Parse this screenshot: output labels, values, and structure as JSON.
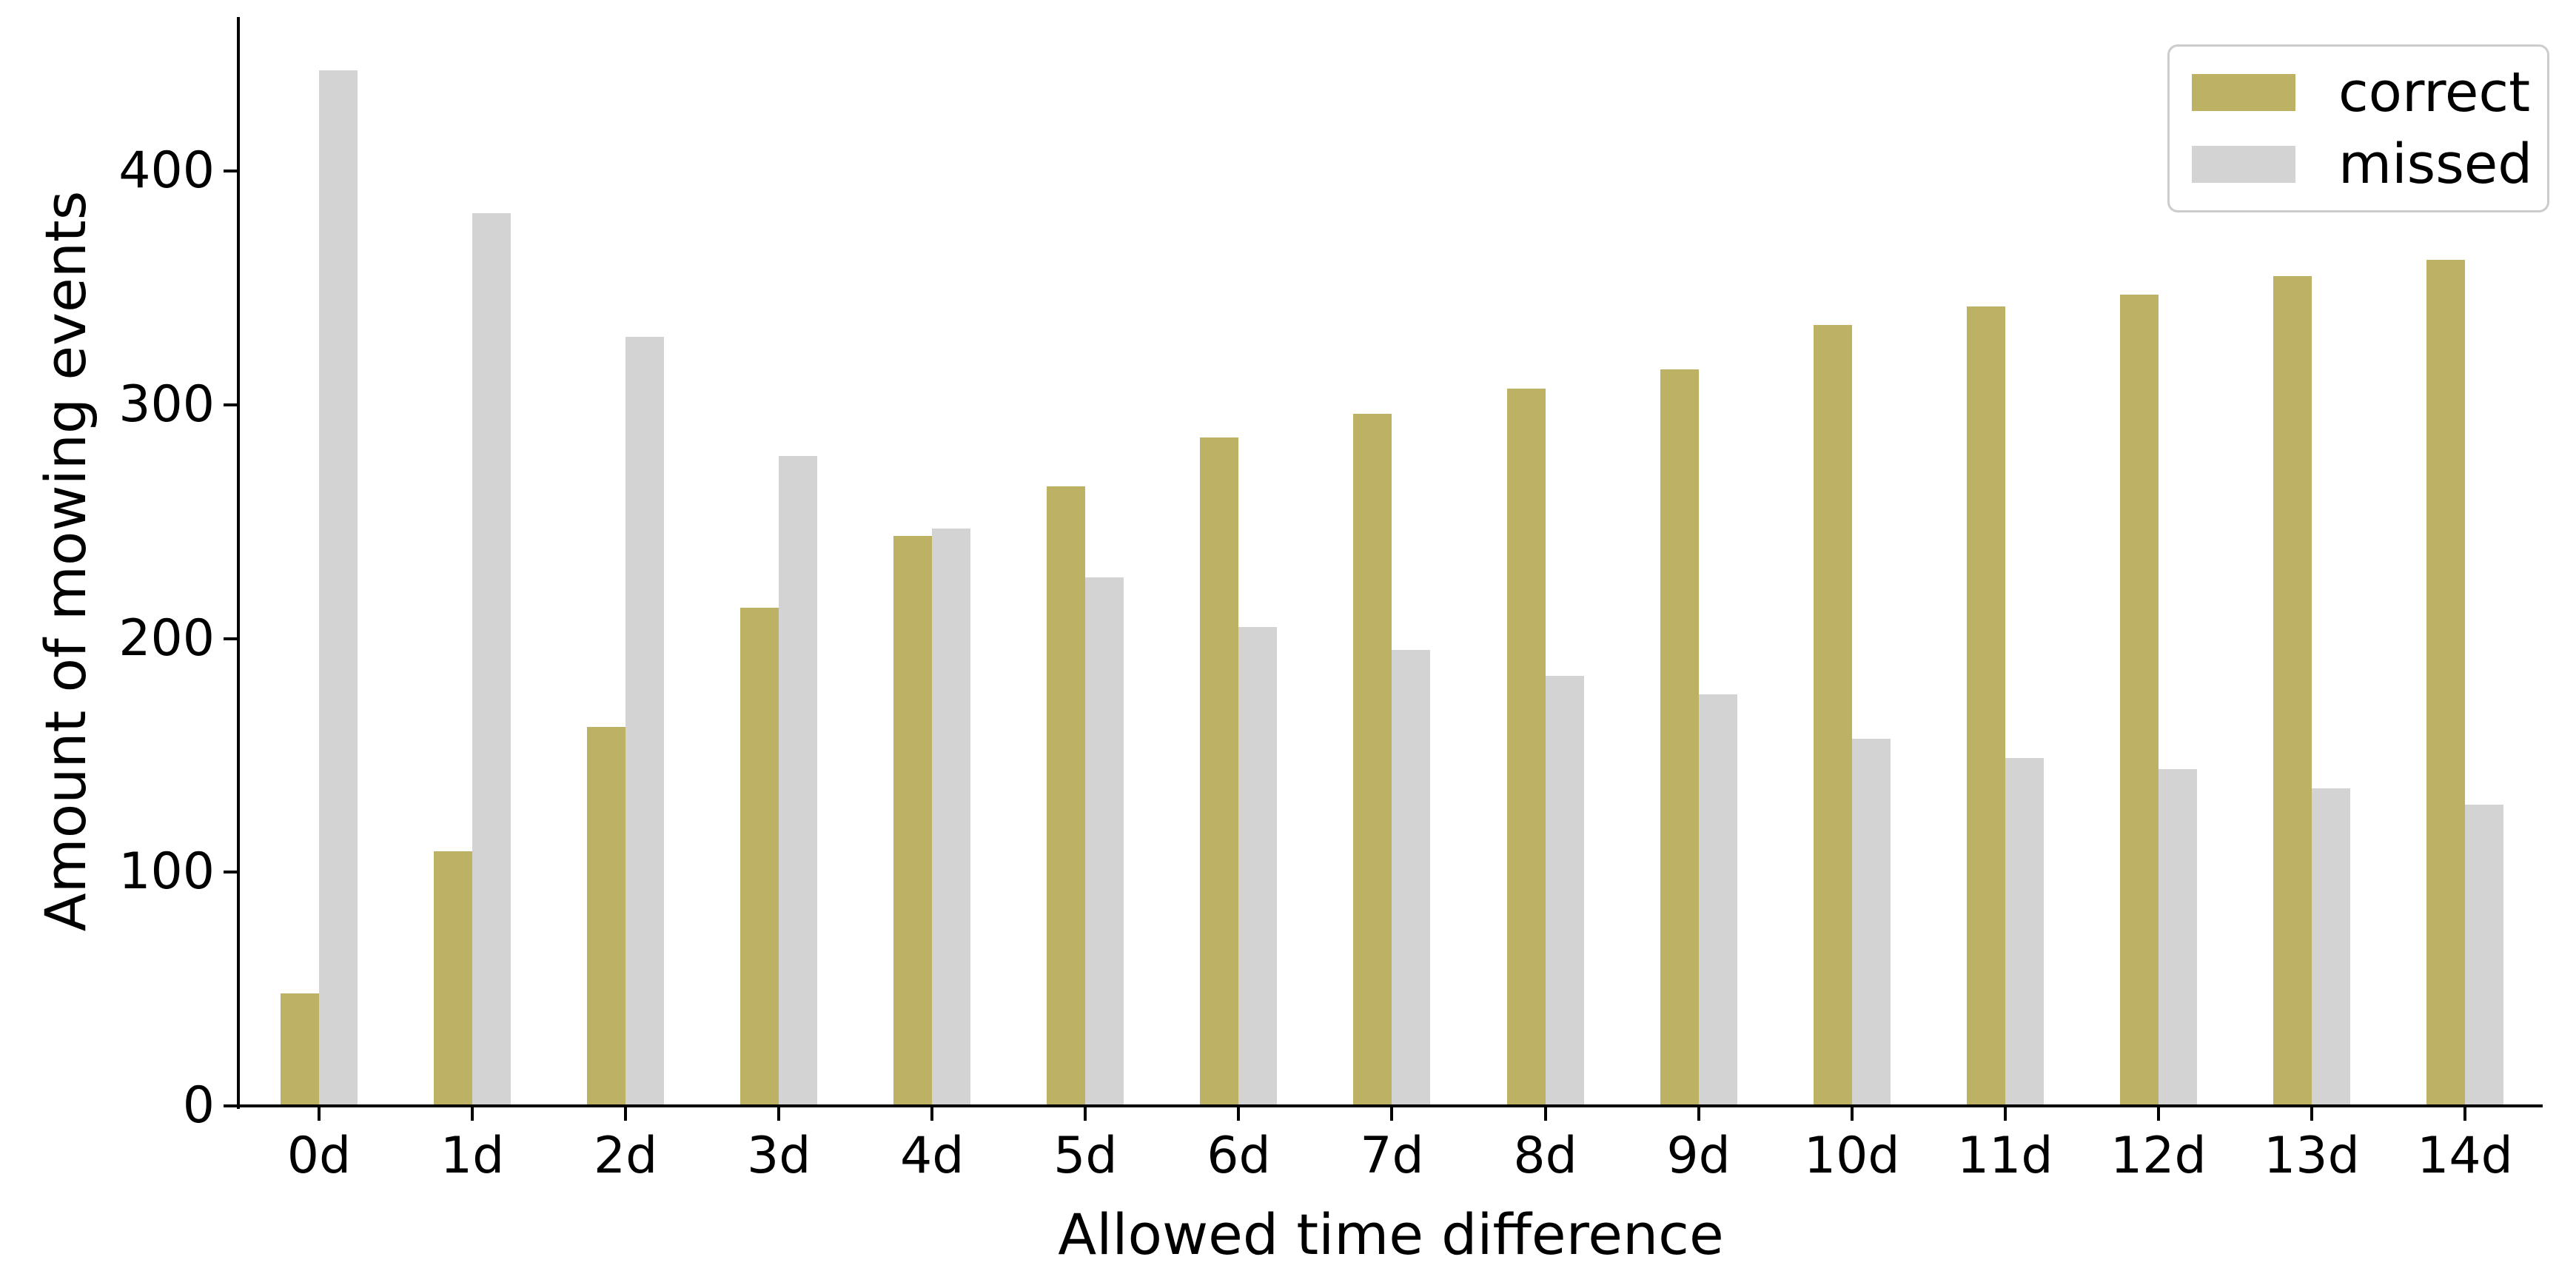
{
  "chart_data": {
    "type": "bar",
    "title": "",
    "xlabel": "Allowed time difference",
    "ylabel": "Amount of mowing events",
    "categories": [
      "0d",
      "1d",
      "2d",
      "3d",
      "4d",
      "5d",
      "6d",
      "7d",
      "8d",
      "9d",
      "10d",
      "11d",
      "12d",
      "13d",
      "14d"
    ],
    "series": [
      {
        "name": "correct",
        "color": "#bdb264",
        "values": [
          48,
          109,
          162,
          213,
          244,
          265,
          286,
          296,
          307,
          315,
          334,
          342,
          347,
          355,
          362
        ]
      },
      {
        "name": "missed",
        "color": "#d3d3d3",
        "values": [
          443,
          382,
          329,
          278,
          247,
          226,
          205,
          195,
          184,
          176,
          157,
          149,
          144,
          136,
          129
        ]
      }
    ],
    "yticks": [
      0,
      100,
      200,
      300,
      400
    ],
    "ylim": [
      0,
      466
    ],
    "grid": false,
    "legend_position": "upper right",
    "axis_color": "#000000",
    "background_color": "#ffffff"
  }
}
